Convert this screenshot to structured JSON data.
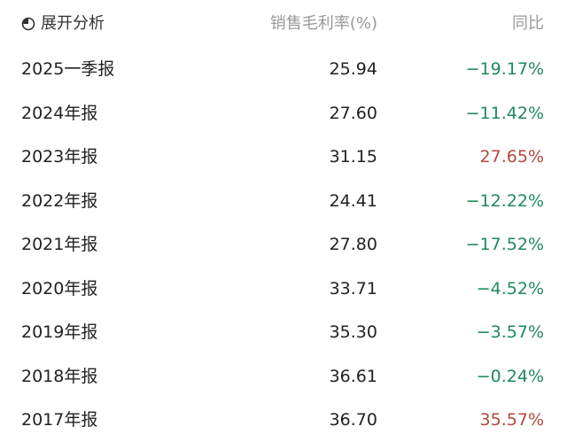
{
  "header": {
    "expand_label": "展开分析",
    "col_margin": "销售毛利率(%)",
    "col_yoy": "同比",
    "icon": "pie-chart-icon"
  },
  "colors": {
    "down": "#1f8a5a",
    "up": "#b5483e"
  },
  "rows": [
    {
      "period": "2025一季报",
      "margin": "25.94",
      "yoy": "−19.17%",
      "dir": "down"
    },
    {
      "period": "2024年报",
      "margin": "27.60",
      "yoy": "−11.42%",
      "dir": "down"
    },
    {
      "period": "2023年报",
      "margin": "31.15",
      "yoy": "27.65%",
      "dir": "up"
    },
    {
      "period": "2022年报",
      "margin": "24.41",
      "yoy": "−12.22%",
      "dir": "down"
    },
    {
      "period": "2021年报",
      "margin": "27.80",
      "yoy": "−17.52%",
      "dir": "down"
    },
    {
      "period": "2020年报",
      "margin": "33.71",
      "yoy": "−4.52%",
      "dir": "down"
    },
    {
      "period": "2019年报",
      "margin": "35.30",
      "yoy": "−3.57%",
      "dir": "down"
    },
    {
      "period": "2018年报",
      "margin": "36.61",
      "yoy": "−0.24%",
      "dir": "down"
    },
    {
      "period": "2017年报",
      "margin": "36.70",
      "yoy": "35.57%",
      "dir": "up"
    }
  ]
}
